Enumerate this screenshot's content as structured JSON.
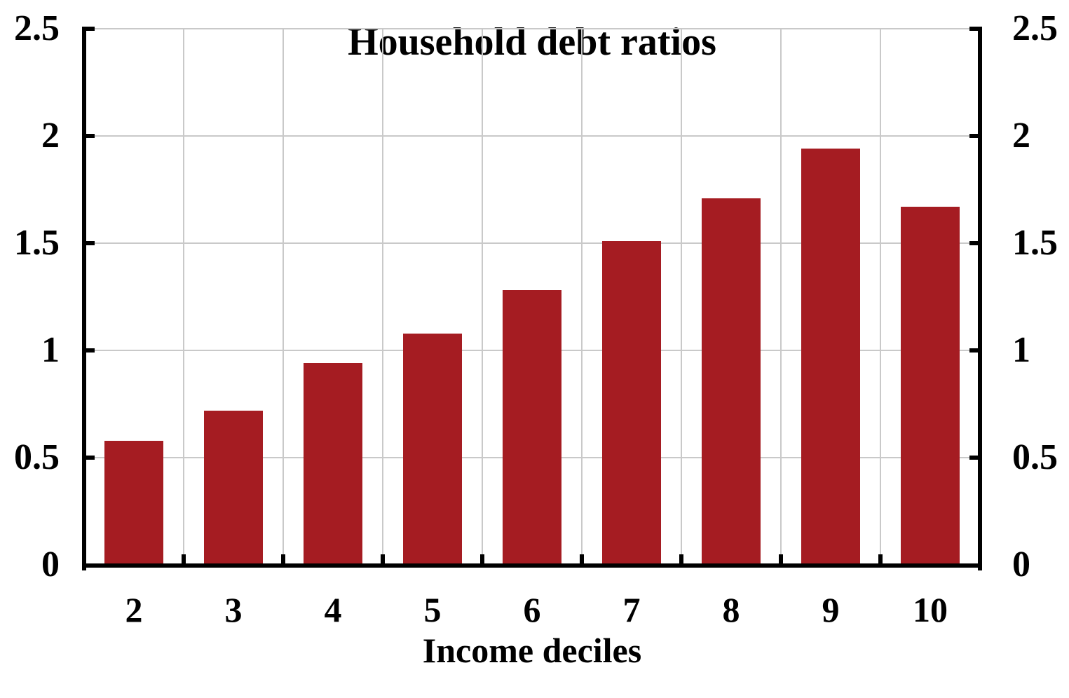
{
  "chart_data": {
    "type": "bar",
    "title": "Household debt ratios",
    "xlabel": "Income deciles",
    "ylabel": "",
    "categories": [
      "2",
      "3",
      "4",
      "5",
      "6",
      "7",
      "8",
      "9",
      "10"
    ],
    "values": [
      0.58,
      0.72,
      0.94,
      1.08,
      1.28,
      1.51,
      1.71,
      1.94,
      1.67
    ],
    "ylim": [
      0,
      2.5
    ],
    "yticks": [
      0,
      0.5,
      1,
      1.5,
      2,
      2.5
    ],
    "ytick_labels": [
      "0",
      "0.5",
      "1",
      "1.5",
      "2",
      "2.5"
    ],
    "y_axis_sides": [
      "left",
      "right"
    ],
    "grid": "both",
    "legend": "none",
    "colors": {
      "bar": "#a51c22",
      "grid": "#c9c9c9",
      "axis": "#000000",
      "background": "#ffffff",
      "text": "#000000"
    }
  }
}
